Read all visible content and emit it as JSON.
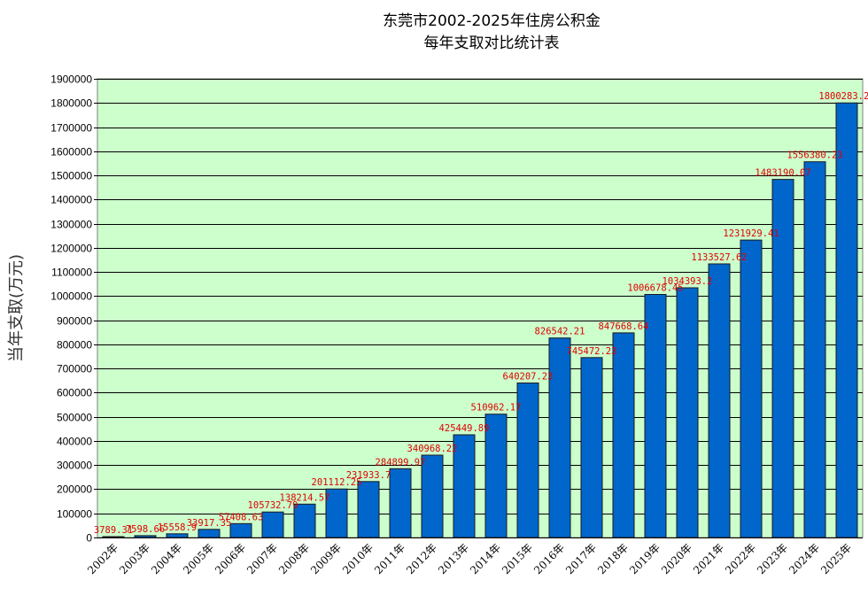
{
  "chart_data": {
    "type": "bar",
    "title": [
      "东莞市2002-2025年住房公积金",
      "每年支取对比统计表"
    ],
    "ylabel": "当年支取(万元)",
    "xlabel": "",
    "ylim": [
      0,
      1900000
    ],
    "ytick_step": 100000,
    "grid": true,
    "colors": {
      "plot_bg": "#ccffcc",
      "bar": "#0066cc",
      "bar_edge": "#1a1a1a",
      "grid": "#000000",
      "label": "#e00000"
    },
    "categories": [
      "2002年",
      "2003年",
      "2004年",
      "2005年",
      "2006年",
      "2007年",
      "2008年",
      "2009年",
      "2010年",
      "2011年",
      "2012年",
      "2013年",
      "2014年",
      "2015年",
      "2016年",
      "2017年",
      "2018年",
      "2019年",
      "2020年",
      "2021年",
      "2022年",
      "2023年",
      "2024年",
      "2025年"
    ],
    "values": [
      3789.31,
      7598.66,
      15558.9,
      33917.35,
      57408.63,
      105732.79,
      138214.57,
      201112.25,
      231933.7,
      284899.97,
      340968.22,
      425449.89,
      510962.17,
      640207.23,
      826542.21,
      745472.23,
      847668.64,
      1006678.45,
      1034393.2,
      1133527.62,
      1231929.41,
      1483190.07,
      1556380.23,
      1800283.27
    ],
    "value_labels": [
      "3789.31",
      "7598.66",
      "15558.9",
      "33917.35",
      "57408.63",
      "105732.79",
      "138214.57",
      "201112.25",
      "231933.7",
      "284899.97",
      "340968.22",
      "425449.89",
      "510962.17",
      "640207.23",
      "826542.21",
      "745472.23",
      "847668.64",
      "1006678.45",
      "1034393.2",
      "1133527.62",
      "1231929.41",
      "1483190.07",
      "1556380.23",
      "1800283.27"
    ]
  }
}
